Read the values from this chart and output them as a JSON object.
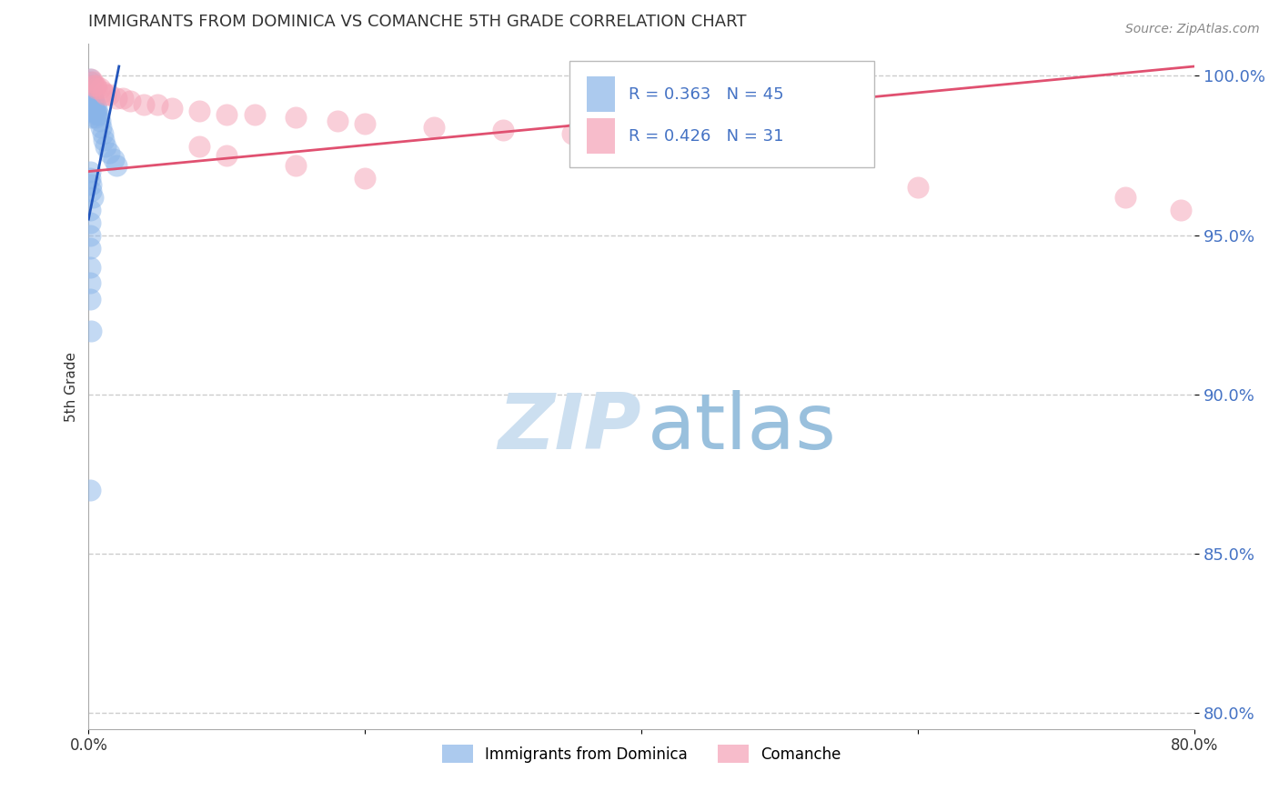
{
  "title": "IMMIGRANTS FROM DOMINICA VS COMANCHE 5TH GRADE CORRELATION CHART",
  "source": "Source: ZipAtlas.com",
  "ylabel": "5th Grade",
  "legend1_label": "Immigrants from Dominica",
  "legend2_label": "Comanche",
  "R1": 0.363,
  "N1": 45,
  "R2": 0.426,
  "N2": 31,
  "color1": "#89b4e8",
  "color2": "#f4a0b5",
  "trendline1_color": "#2255bb",
  "trendline2_color": "#e05070",
  "x_min": 0.0,
  "x_max": 0.8,
  "y_min": 0.795,
  "y_max": 1.01,
  "yticks": [
    0.8,
    0.85,
    0.9,
    0.95,
    1.0
  ],
  "ytick_labels": [
    "80.0%",
    "85.0%",
    "90.0%",
    "95.0%",
    "100.0%"
  ],
  "xticks": [
    0.0,
    0.2,
    0.4,
    0.6,
    0.8
  ],
  "xtick_labels": [
    "0.0%",
    "",
    "",
    "",
    "80.0%"
  ],
  "blue_points_x": [
    0.001,
    0.001,
    0.001,
    0.001,
    0.001,
    0.001,
    0.001,
    0.002,
    0.002,
    0.002,
    0.002,
    0.002,
    0.003,
    0.003,
    0.003,
    0.004,
    0.004,
    0.005,
    0.005,
    0.005,
    0.006,
    0.006,
    0.007,
    0.008,
    0.009,
    0.01,
    0.011,
    0.012,
    0.015,
    0.018,
    0.02,
    0.001,
    0.001,
    0.002,
    0.002,
    0.003,
    0.001,
    0.001,
    0.001,
    0.001,
    0.001,
    0.001,
    0.001,
    0.002,
    0.001
  ],
  "blue_points_y": [
    0.999,
    0.998,
    0.997,
    0.996,
    0.994,
    0.992,
    0.99,
    0.995,
    0.993,
    0.991,
    0.989,
    0.987,
    0.993,
    0.991,
    0.989,
    0.992,
    0.99,
    0.991,
    0.989,
    0.987,
    0.99,
    0.988,
    0.988,
    0.986,
    0.984,
    0.982,
    0.98,
    0.978,
    0.976,
    0.974,
    0.972,
    0.97,
    0.968,
    0.966,
    0.964,
    0.962,
    0.958,
    0.954,
    0.95,
    0.946,
    0.94,
    0.935,
    0.93,
    0.92,
    0.87
  ],
  "pink_points_x": [
    0.002,
    0.003,
    0.004,
    0.005,
    0.006,
    0.008,
    0.01,
    0.012,
    0.015,
    0.02,
    0.025,
    0.03,
    0.04,
    0.05,
    0.06,
    0.08,
    0.1,
    0.12,
    0.15,
    0.18,
    0.2,
    0.25,
    0.3,
    0.35,
    0.08,
    0.1,
    0.15,
    0.2,
    0.6,
    0.75,
    0.79
  ],
  "pink_points_y": [
    0.999,
    0.998,
    0.997,
    0.997,
    0.996,
    0.996,
    0.995,
    0.994,
    0.994,
    0.993,
    0.993,
    0.992,
    0.991,
    0.991,
    0.99,
    0.989,
    0.988,
    0.988,
    0.987,
    0.986,
    0.985,
    0.984,
    0.983,
    0.982,
    0.978,
    0.975,
    0.972,
    0.968,
    0.965,
    0.962,
    0.958
  ]
}
